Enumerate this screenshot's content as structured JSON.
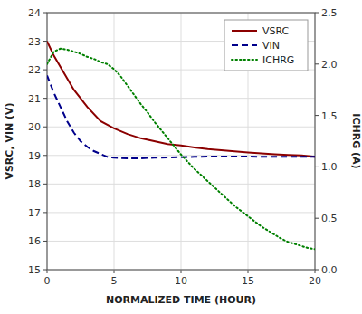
{
  "chart_data": {
    "type": "line",
    "xlabel": "NORMALIZED TIME (HOUR)",
    "ylabel": "VSRC, VIN (V)",
    "y2label": "ICHRG (A)",
    "xlim": [
      0,
      20
    ],
    "ylim": [
      15,
      24
    ],
    "y2lim": [
      0,
      2.5
    ],
    "xticks": [
      0,
      5,
      10,
      15,
      20
    ],
    "yticks": [
      15,
      16,
      17,
      18,
      19,
      20,
      21,
      22,
      23,
      24
    ],
    "y2ticks": [
      {
        "value": 0,
        "label": "0.0"
      },
      0.5,
      {
        "value": 1,
        "label": "1.0"
      },
      1.5,
      {
        "value": 2,
        "label": "2.0"
      },
      2.5
    ],
    "grid": true,
    "legend": "upper-right",
    "series": [
      {
        "name": "VSRC",
        "color": "#8B0000",
        "line_style": "solid",
        "x": [
          0,
          0.5,
          1,
          2,
          3,
          4,
          5,
          6,
          7,
          8,
          9,
          10,
          11,
          12,
          13,
          14,
          15,
          16,
          17,
          18,
          19,
          20
        ],
        "values": [
          23.0,
          22.5,
          22.1,
          21.3,
          20.7,
          20.2,
          19.95,
          19.75,
          19.6,
          19.5,
          19.4,
          19.35,
          19.28,
          19.22,
          19.18,
          19.14,
          19.1,
          19.07,
          19.04,
          19.02,
          19.0,
          18.95
        ]
      },
      {
        "name": "VIN",
        "color": "#00008B",
        "line_style": "dashed",
        "x": [
          0,
          0.5,
          1,
          1.5,
          2,
          2.5,
          3,
          3.5,
          4,
          4.5,
          5,
          6,
          7,
          8,
          9,
          10,
          11,
          12,
          13,
          14,
          15,
          16,
          17,
          18,
          19,
          20
        ],
        "values": [
          21.8,
          21.2,
          20.7,
          20.2,
          19.8,
          19.5,
          19.3,
          19.15,
          19.05,
          18.95,
          18.92,
          18.9,
          18.9,
          18.92,
          18.93,
          18.94,
          18.95,
          18.96,
          18.96,
          18.96,
          18.96,
          18.95,
          18.95,
          18.95,
          18.95,
          18.95
        ]
      },
      {
        "name": "ICHRG",
        "color": "#008000",
        "line_style": "dotted",
        "axis": "y2",
        "x": [
          0,
          0.5,
          1,
          1.5,
          2,
          2.5,
          3,
          3.5,
          4,
          4.5,
          5,
          5.5,
          6,
          6.5,
          7,
          7.5,
          8,
          8.5,
          9,
          9.5,
          10,
          10.5,
          11,
          11.5,
          12,
          12.5,
          13,
          13.5,
          14,
          14.5,
          15,
          15.5,
          16,
          16.5,
          17,
          17.5,
          18,
          18.5,
          19,
          19.5,
          20
        ],
        "values": [
          2.0,
          2.12,
          2.15,
          2.14,
          2.12,
          2.1,
          2.07,
          2.05,
          2.02,
          2.0,
          1.95,
          1.88,
          1.79,
          1.7,
          1.61,
          1.53,
          1.44,
          1.36,
          1.28,
          1.2,
          1.12,
          1.05,
          0.98,
          0.92,
          0.86,
          0.8,
          0.74,
          0.68,
          0.62,
          0.57,
          0.52,
          0.47,
          0.42,
          0.38,
          0.34,
          0.3,
          0.27,
          0.25,
          0.23,
          0.21,
          0.2
        ]
      }
    ]
  }
}
